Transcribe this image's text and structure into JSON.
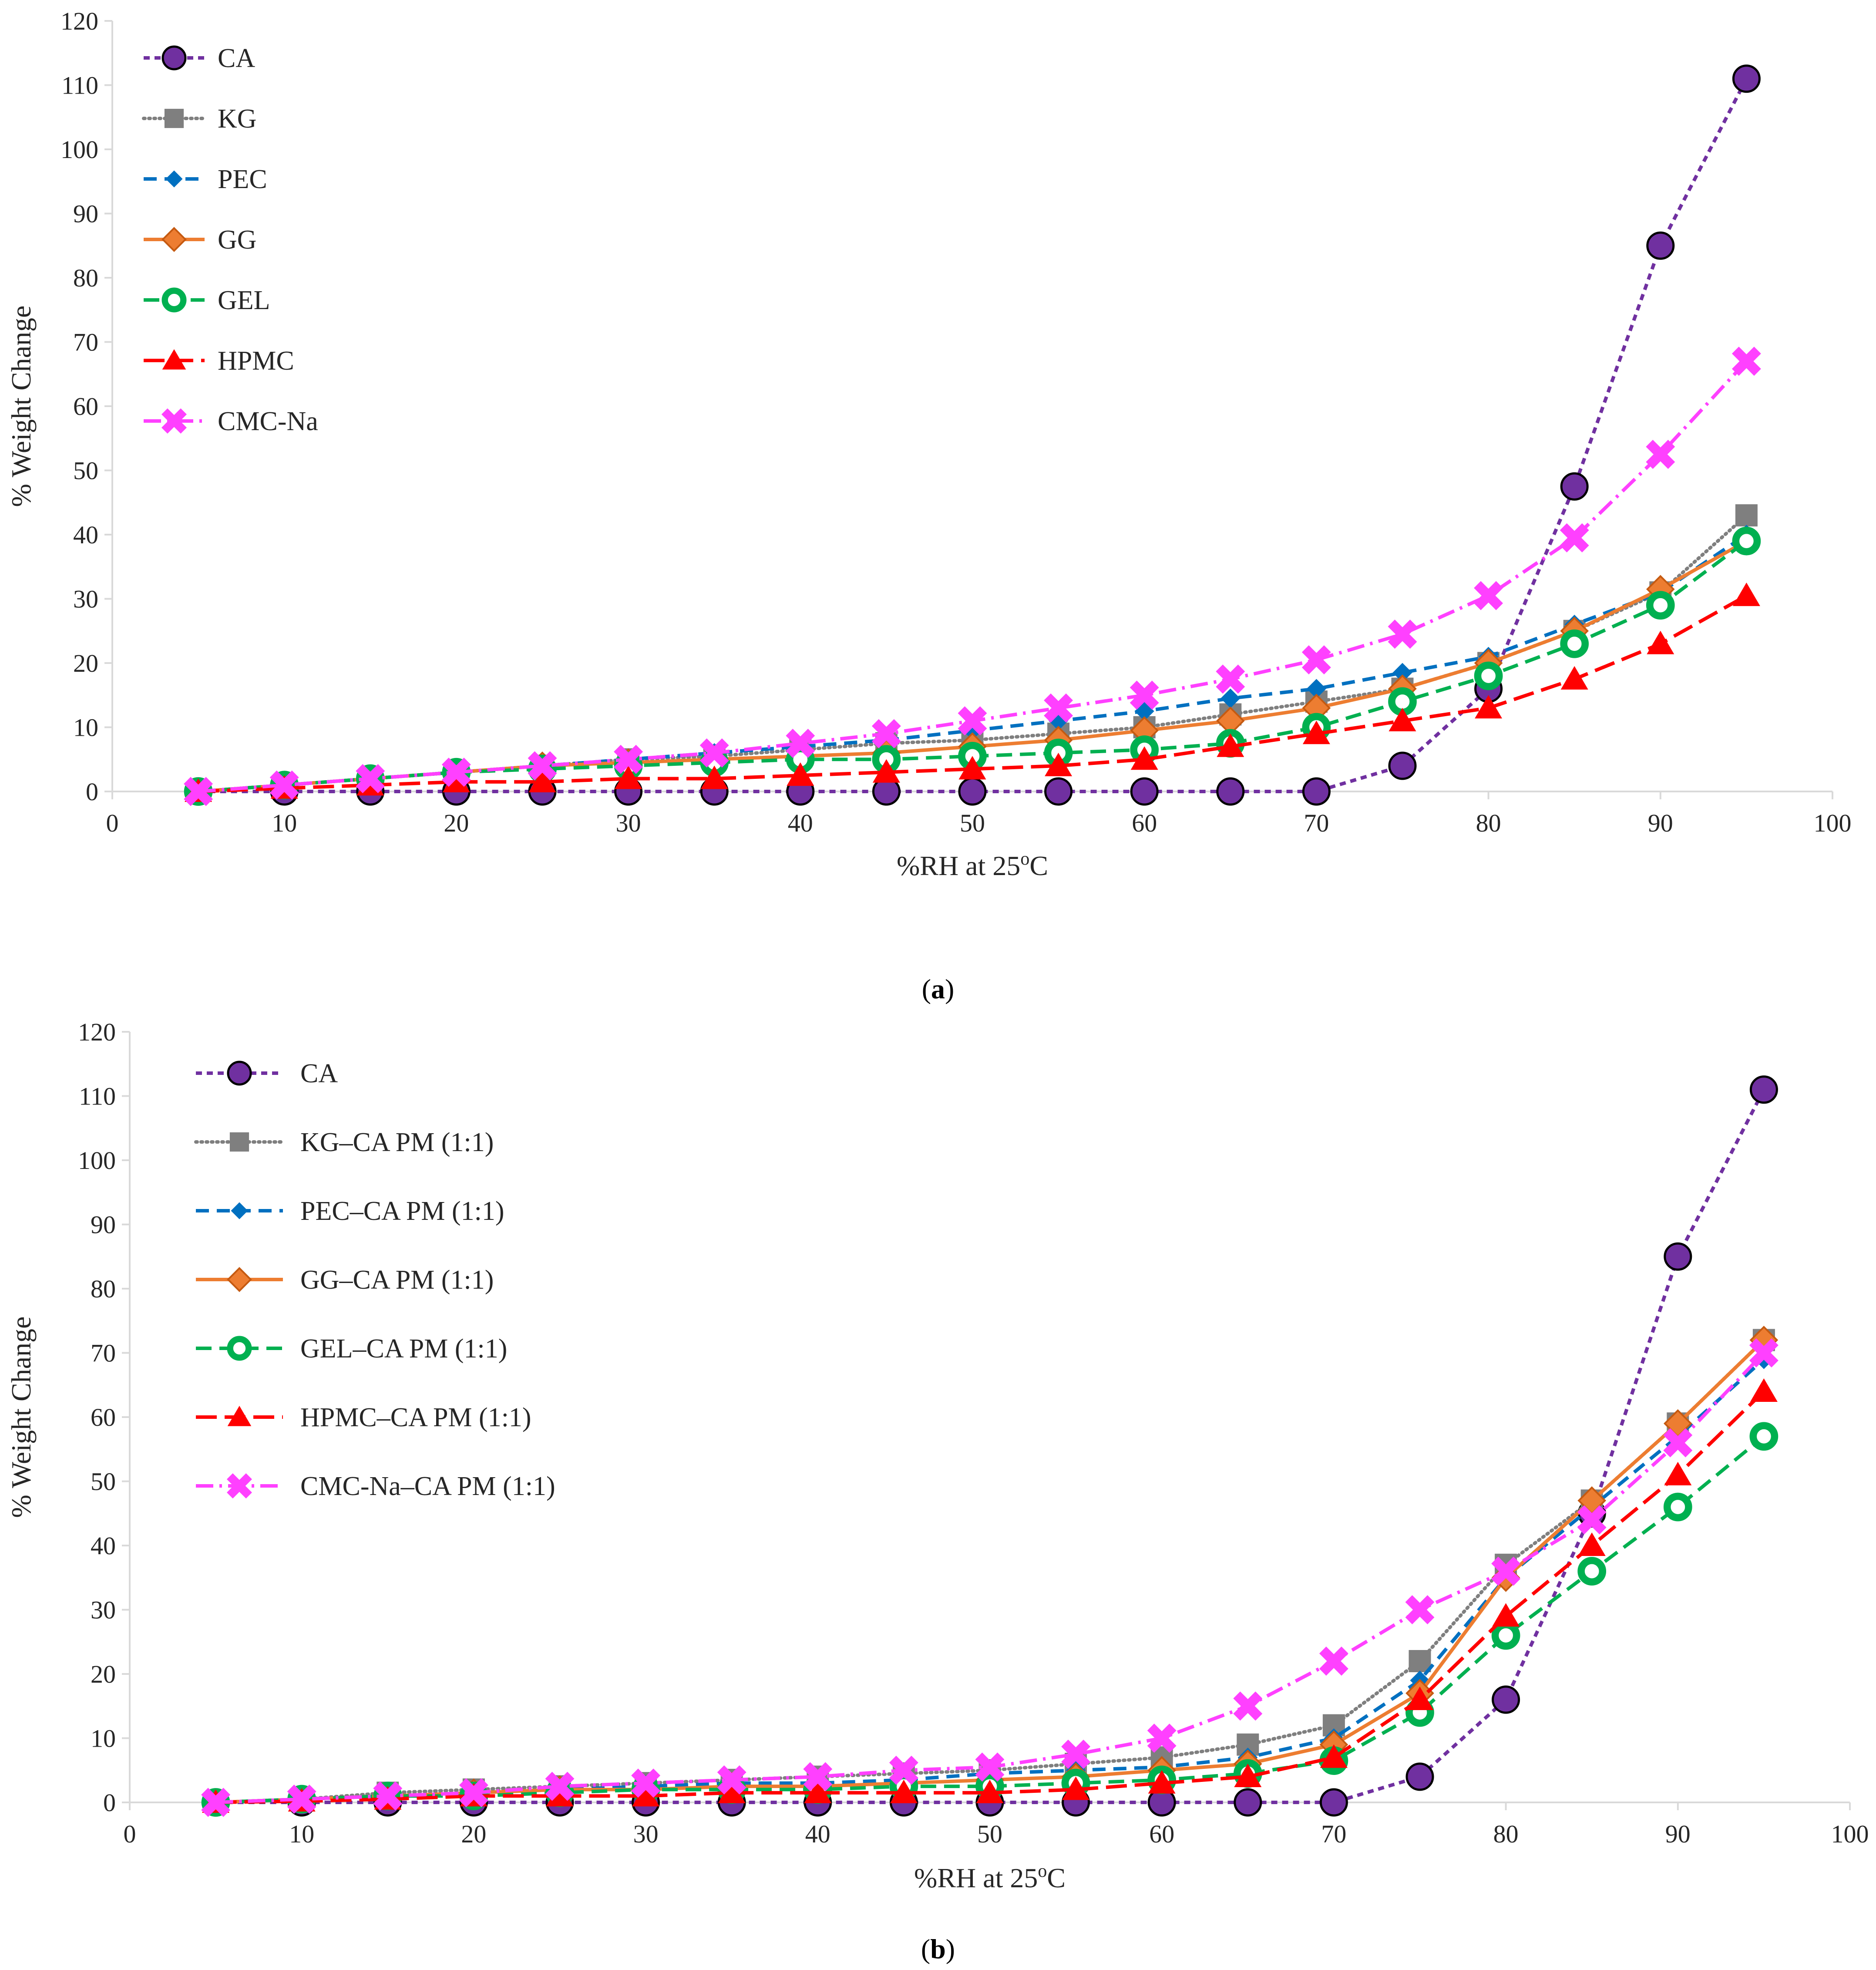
{
  "captions": {
    "a": "a",
    "b": "b"
  },
  "styles": {
    "CA": {
      "color": "#7030A0",
      "dash": "14,11",
      "width": 8,
      "marker": "circle"
    },
    "KG": {
      "color": "#7F7F7F",
      "dash": "3,9",
      "width": 8,
      "marker": "square"
    },
    "PEC": {
      "color": "#0070C0",
      "dash": "30,18",
      "width": 8,
      "marker": "diamond-small"
    },
    "GG": {
      "color": "#ED7D31",
      "dash": "",
      "width": 8,
      "marker": "diamond"
    },
    "GEL": {
      "color": "#00B050",
      "dash": "36,18",
      "width": 8,
      "marker": "ring"
    },
    "HPMC": {
      "color": "#FF0000",
      "dash": "48,18",
      "width": 8,
      "marker": "triangle"
    },
    "CMCNA": {
      "color": "#FF40FF",
      "dash": "40,14,6,14",
      "width": 8,
      "marker": "x"
    }
  },
  "chart_data": [
    {
      "id": "a",
      "type": "line",
      "title": "",
      "xlabel": "%RH at 25",
      "xlabel_sup": "o",
      "xlabel_suffix": "C",
      "ylabel": "% Weight Change",
      "xlim": [
        0,
        100
      ],
      "ylim": [
        0,
        120
      ],
      "xticks": [
        0,
        10,
        20,
        30,
        40,
        50,
        60,
        70,
        80,
        90,
        100
      ],
      "yticks": [
        0,
        10,
        20,
        30,
        40,
        50,
        60,
        70,
        80,
        90,
        100,
        110,
        120
      ],
      "x": [
        5,
        10,
        15,
        20,
        25,
        30,
        35,
        40,
        45,
        50,
        55,
        60,
        65,
        70,
        75,
        80,
        85,
        90,
        95
      ],
      "legend_position": "top-left",
      "series": [
        {
          "name": "CA",
          "style": "CA",
          "values": [
            0,
            0,
            0,
            0,
            0,
            0,
            0,
            0,
            0,
            0,
            0,
            0,
            0,
            0,
            4,
            16,
            47.5,
            85,
            111
          ]
        },
        {
          "name": "KG",
          "style": "KG",
          "values": [
            0,
            1,
            2,
            3,
            4,
            5,
            5.5,
            6.5,
            7.5,
            8,
            9,
            10,
            12,
            14,
            16,
            20,
            25,
            31,
            43
          ]
        },
        {
          "name": "PEC",
          "style": "PEC",
          "values": [
            0,
            1,
            2,
            3,
            4,
            5,
            6,
            7,
            8,
            9.5,
            11,
            12.5,
            14.5,
            16,
            18.5,
            21,
            26,
            31,
            40
          ]
        },
        {
          "name": "GG",
          "style": "GG",
          "values": [
            0,
            1,
            2,
            3,
            4,
            4.5,
            5,
            5.5,
            6,
            7,
            8,
            9.5,
            11,
            13,
            16,
            20,
            25,
            31.5,
            39
          ]
        },
        {
          "name": "GEL",
          "style": "GEL",
          "values": [
            0,
            1,
            2,
            3,
            3.5,
            4,
            4.5,
            5,
            5,
            5.5,
            6,
            6.5,
            7.5,
            10,
            14,
            18,
            23,
            29,
            39
          ]
        },
        {
          "name": "HPMC",
          "style": "HPMC",
          "values": [
            0,
            0.5,
            1,
            1.5,
            1.5,
            2,
            2,
            2.5,
            3,
            3.5,
            4,
            5,
            7,
            9,
            11,
            13,
            17.5,
            23,
            30.5
          ]
        },
        {
          "name": "CMC-Na",
          "style": "CMCNA",
          "values": [
            0,
            1,
            2,
            3,
            4,
            5,
            6,
            7.5,
            9,
            11,
            13,
            15,
            17.5,
            20.5,
            24.5,
            30.5,
            39.5,
            52.5,
            67
          ]
        }
      ]
    },
    {
      "id": "b",
      "type": "line",
      "title": "",
      "xlabel": "%RH at 25",
      "xlabel_sup": "o",
      "xlabel_suffix": "C",
      "ylabel": "% Weight Change",
      "xlim": [
        0,
        100
      ],
      "ylim": [
        0,
        120
      ],
      "xticks": [
        0,
        10,
        20,
        30,
        40,
        50,
        60,
        70,
        80,
        90,
        100
      ],
      "yticks": [
        0,
        10,
        20,
        30,
        40,
        50,
        60,
        70,
        80,
        90,
        100,
        110,
        120
      ],
      "x": [
        5,
        10,
        15,
        20,
        25,
        30,
        35,
        40,
        45,
        50,
        55,
        60,
        65,
        70,
        75,
        80,
        85,
        90,
        95
      ],
      "legend_position": "top-left",
      "series": [
        {
          "name": "CA",
          "style": "CA",
          "values": [
            0,
            0,
            0,
            0,
            0,
            0,
            0,
            0,
            0,
            0,
            0,
            0,
            0,
            0,
            4,
            16,
            45,
            85,
            111
          ]
        },
        {
          "name": "KG–CA PM (1:1)",
          "style": "KG",
          "values": [
            0,
            0.5,
            1.5,
            2,
            2.5,
            3,
            3.5,
            4,
            4.5,
            5,
            6,
            7,
            9,
            12,
            22,
            37,
            47,
            59,
            72
          ]
        },
        {
          "name": "PEC–CA PM (1:1)",
          "style": "PEC",
          "values": [
            0,
            0.5,
            1,
            1.5,
            2,
            2.5,
            3,
            3,
            3.5,
            4.5,
            5,
            5.5,
            7,
            10,
            19,
            35,
            46,
            57,
            69
          ]
        },
        {
          "name": "GG–CA PM (1:1)",
          "style": "GG",
          "values": [
            0,
            0.5,
            1,
            1.5,
            2,
            2,
            2.5,
            2.5,
            3,
            3.5,
            4,
            5,
            6,
            9,
            17,
            35,
            47,
            59,
            72
          ]
        },
        {
          "name": "GEL–CA PM (1:1)",
          "style": "GEL",
          "values": [
            0,
            0.5,
            1,
            1,
            1.5,
            2,
            2,
            2,
            2.5,
            2.5,
            3,
            3.5,
            4.5,
            6.5,
            14,
            26,
            36,
            46,
            57
          ]
        },
        {
          "name": "HPMC–CA PM (1:1)",
          "style": "HPMC",
          "values": [
            0,
            0.2,
            0.5,
            1,
            1,
            1,
            1.5,
            1.5,
            1.5,
            1.5,
            2,
            3,
            4,
            7,
            16,
            29,
            40,
            51,
            64
          ]
        },
        {
          "name": "CMC-Na–CA PM (1:1)",
          "style": "CMCNA",
          "values": [
            0,
            0.5,
            1,
            1.5,
            2.5,
            3,
            3.5,
            4,
            5,
            5.5,
            7.5,
            10,
            15,
            22,
            30,
            36,
            44,
            56,
            70
          ]
        }
      ]
    }
  ]
}
